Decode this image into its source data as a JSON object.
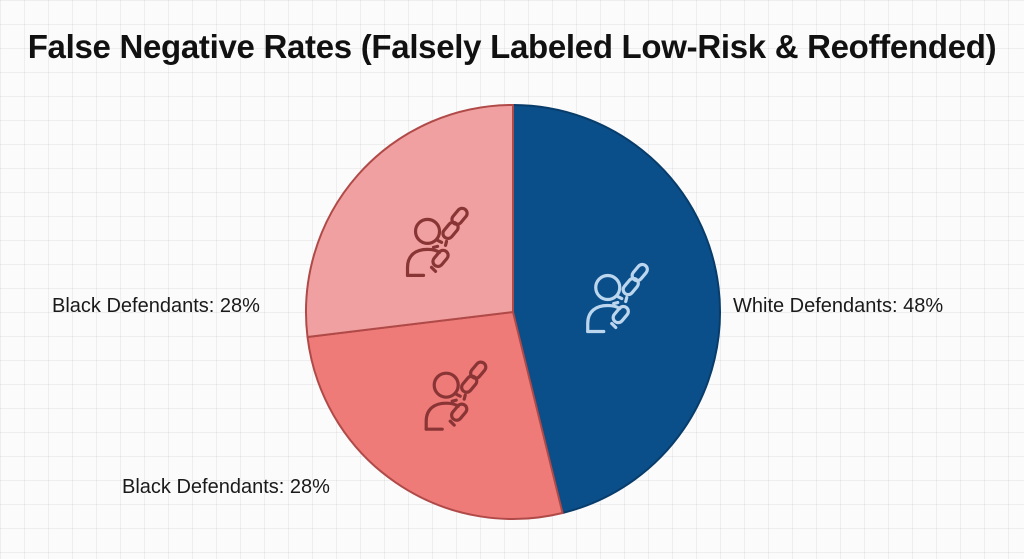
{
  "chart_data": {
    "type": "pie",
    "title": "False Negative Rates (Falsely Labeled Low-Risk & Reoffended)",
    "slices": [
      {
        "label": "White Defendants",
        "value": 48,
        "display": "White Defendants: 48%",
        "color": "#0b4f8a",
        "stroke": "#083c6a",
        "icon_color": "#bcd6ee"
      },
      {
        "label": "Black Defendants",
        "value": 28,
        "display": "Black Defendants: 28%",
        "color": "#ef7b79",
        "stroke": "#b04a48",
        "icon_color": "#8a3535"
      },
      {
        "label": "Black Defendants",
        "value": 28,
        "display": "Black Defendants: 28%",
        "color": "#f0a0a0",
        "stroke": "#b04a48",
        "icon_color": "#8a3535"
      }
    ],
    "icon": "person-broken-chain-icon"
  }
}
